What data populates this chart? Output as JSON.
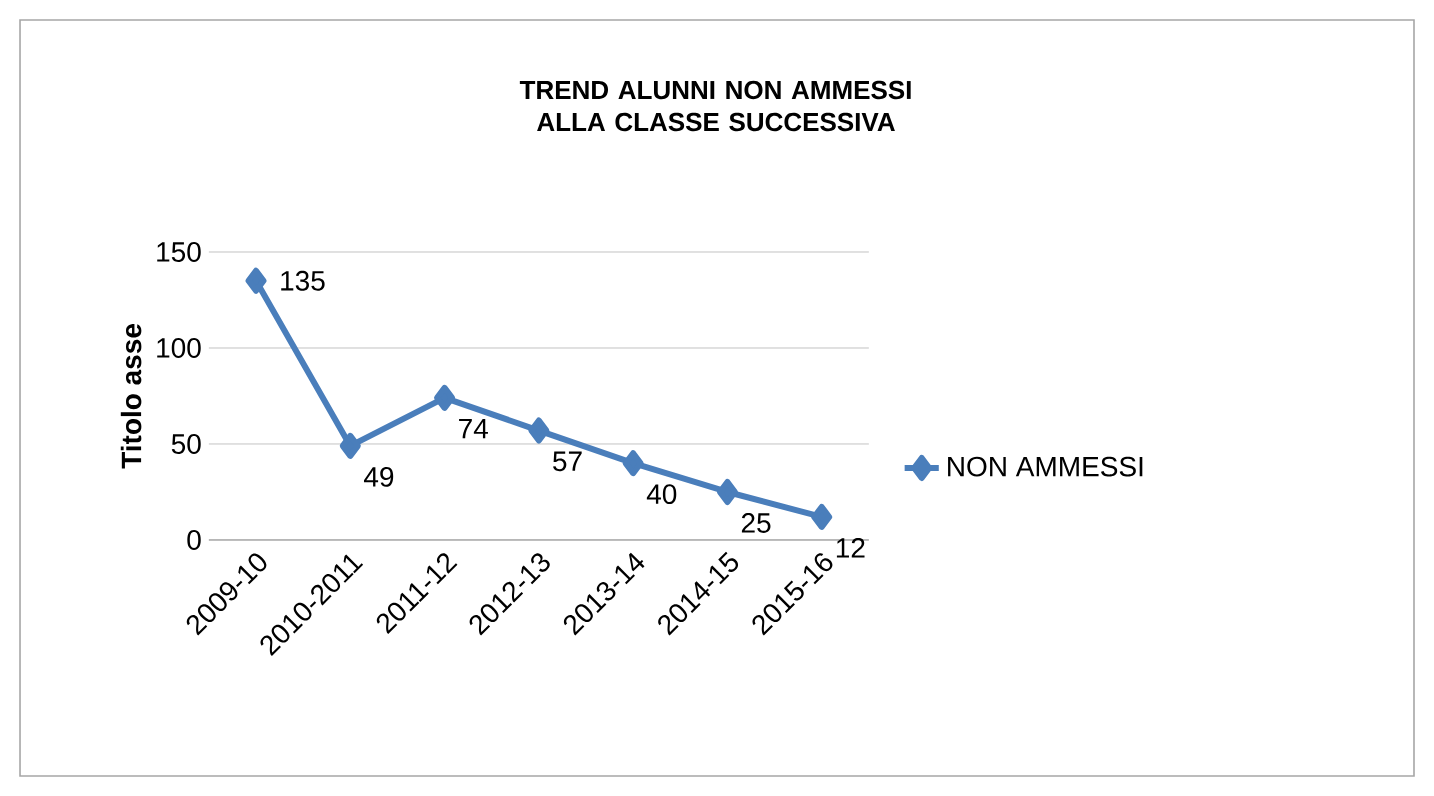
{
  "chart_data": {
    "type": "line",
    "title": "TREND ALUNNI NON AMMESSI ALLA CLASSE SUCCESSIVA",
    "ylabel": "Titolo asse",
    "categories": [
      "2009-10",
      "2010-2011",
      "2011-12",
      "2012-13",
      "2013-14",
      "2014-15",
      "2015-16"
    ],
    "series": [
      {
        "name": "NON AMMESSI",
        "color": "#4a7ebb",
        "values": [
          135,
          49,
          74,
          57,
          40,
          25,
          12
        ]
      }
    ],
    "ylim": [
      0,
      150
    ],
    "yticks": [
      0,
      50,
      100,
      150
    ],
    "grid": "y",
    "legend": "right",
    "marker": "diamond",
    "line_style": "solid",
    "data_labels": true
  }
}
